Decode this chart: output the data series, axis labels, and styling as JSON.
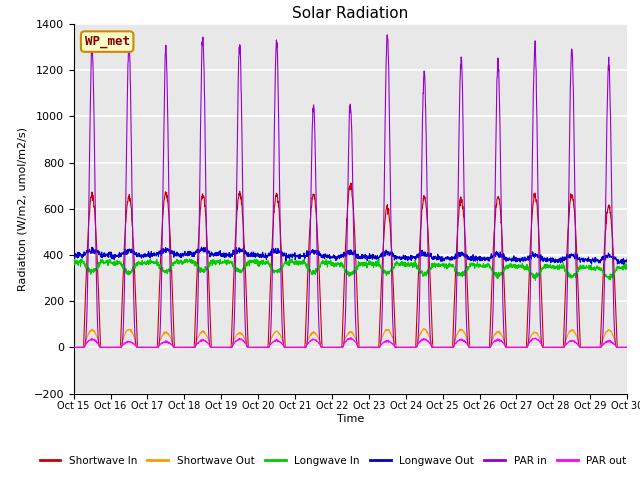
{
  "title": "Solar Radiation",
  "ylabel": "Radiation (W/m2, umol/m2/s)",
  "xlabel": "Time",
  "ylim": [
    -200,
    1400
  ],
  "background_color": "#e8e8e8",
  "grid_color": "white",
  "label_box_text": "WP_met",
  "label_box_bg": "#ffffcc",
  "label_box_border": "#cc8800",
  "xtick_labels": [
    "Oct 15",
    "Oct 16",
    "Oct 17",
    "Oct 18",
    "Oct 19",
    "Oct 20",
    "Oct 21",
    "Oct 22",
    "Oct 23",
    "Oct 24",
    "Oct 25",
    "Oct 26",
    "Oct 27",
    "Oct 28",
    "Oct 29",
    "Oct 30"
  ],
  "series": {
    "shortwave_in": {
      "color": "#cc0000",
      "label": "Shortwave In"
    },
    "shortwave_out": {
      "color": "#ff9900",
      "label": "Shortwave Out"
    },
    "longwave_in": {
      "color": "#00cc00",
      "label": "Longwave In"
    },
    "longwave_out": {
      "color": "#0000cc",
      "label": "Longwave Out"
    },
    "par_in": {
      "color": "#9900cc",
      "label": "PAR in"
    },
    "par_out": {
      "color": "#ff00ff",
      "label": "PAR out"
    }
  },
  "n_days": 15,
  "sw_in_peaks": [
    660,
    650,
    670,
    660,
    670,
    660,
    660,
    700,
    600,
    650,
    640,
    650,
    660,
    660,
    610
  ],
  "par_in_peaks": [
    1300,
    1310,
    1280,
    1340,
    1315,
    1320,
    1050,
    1060,
    1350,
    1195,
    1250,
    1240,
    1300,
    1295,
    1230
  ],
  "lw_in_bases": [
    370,
    365,
    368,
    372,
    370,
    368,
    365,
    360,
    362,
    358,
    355,
    352,
    350,
    348,
    345
  ],
  "lw_out_bases": [
    400,
    398,
    402,
    405,
    400,
    398,
    395,
    392,
    390,
    388,
    385,
    383,
    380,
    378,
    375
  ]
}
